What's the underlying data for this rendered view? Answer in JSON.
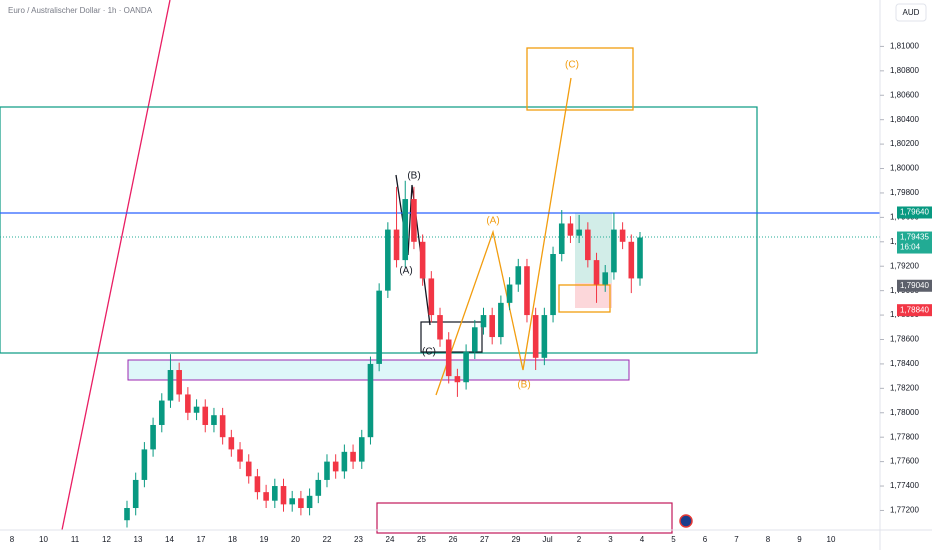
{
  "header": {
    "title": "Euro / Australischer Dollar · 1h · OANDA",
    "currency": "AUD"
  },
  "chart_data": {
    "type": "candlestick",
    "open": [
      1.7712,
      1.7722,
      1.7745,
      1.777,
      1.779,
      1.781,
      1.7835,
      1.7815,
      1.78,
      1.7805,
      1.779,
      1.7798,
      1.778,
      1.777,
      1.776,
      1.7748,
      1.7735,
      1.7728,
      1.774,
      1.7725,
      1.773,
      1.7722,
      1.7732,
      1.7745,
      1.776,
      1.7752,
      1.7768,
      1.776,
      1.778,
      1.784,
      1.79,
      1.795,
      1.7925,
      1.7975,
      1.794,
      1.791,
      1.788,
      1.786,
      1.783,
      1.7825,
      1.785,
      1.787,
      1.788,
      1.7862,
      1.789,
      1.7905,
      1.792,
      1.788,
      1.7845,
      1.788,
      1.793,
      1.7955,
      1.7945,
      1.795,
      1.7925,
      1.7905,
      1.7915,
      1.795,
      1.794,
      1.791
    ],
    "high": [
      1.7728,
      1.7751,
      1.7776,
      1.7796,
      1.7816,
      1.7848,
      1.7841,
      1.7821,
      1.7811,
      1.7811,
      1.7804,
      1.7804,
      1.7786,
      1.7776,
      1.7766,
      1.7754,
      1.7741,
      1.7746,
      1.7746,
      1.7736,
      1.7736,
      1.7738,
      1.7751,
      1.7766,
      1.7766,
      1.7774,
      1.7774,
      1.7786,
      1.7846,
      1.7906,
      1.7956,
      1.7985,
      1.799,
      1.7985,
      1.7946,
      1.7916,
      1.7886,
      1.7866,
      1.7836,
      1.7856,
      1.7876,
      1.7886,
      1.7886,
      1.7896,
      1.7911,
      1.7926,
      1.7926,
      1.7886,
      1.7886,
      1.7936,
      1.7966,
      1.7961,
      1.7962,
      1.7956,
      1.7931,
      1.7921,
      1.7964,
      1.7956,
      1.7946,
      1.7948
    ],
    "low": [
      1.7706,
      1.7716,
      1.7739,
      1.7764,
      1.7784,
      1.7804,
      1.7809,
      1.7794,
      1.7794,
      1.7784,
      1.7784,
      1.7774,
      1.7764,
      1.7754,
      1.7742,
      1.7729,
      1.7722,
      1.7722,
      1.7719,
      1.7719,
      1.7716,
      1.7716,
      1.7726,
      1.7739,
      1.7746,
      1.7746,
      1.7754,
      1.7754,
      1.7774,
      1.7834,
      1.7894,
      1.7919,
      1.7919,
      1.7934,
      1.7904,
      1.7874,
      1.7854,
      1.7824,
      1.7813,
      1.7819,
      1.7844,
      1.7864,
      1.7856,
      1.7856,
      1.7884,
      1.7899,
      1.7874,
      1.7835,
      1.7839,
      1.7874,
      1.7924,
      1.7939,
      1.7939,
      1.7919,
      1.789,
      1.7899,
      1.7909,
      1.7934,
      1.7898,
      1.7904
    ],
    "close": [
      1.7722,
      1.7745,
      1.777,
      1.779,
      1.781,
      1.7835,
      1.7815,
      1.78,
      1.7805,
      1.779,
      1.7798,
      1.778,
      1.777,
      1.776,
      1.7748,
      1.7735,
      1.7728,
      1.774,
      1.7725,
      1.773,
      1.7722,
      1.7732,
      1.7745,
      1.776,
      1.7752,
      1.7768,
      1.776,
      1.778,
      1.784,
      1.79,
      1.795,
      1.7925,
      1.7975,
      1.794,
      1.791,
      1.788,
      1.786,
      1.783,
      1.7825,
      1.785,
      1.787,
      1.788,
      1.7862,
      1.789,
      1.7905,
      1.792,
      1.788,
      1.7845,
      1.788,
      1.793,
      1.7955,
      1.7945,
      1.795,
      1.7925,
      1.7905,
      1.7915,
      1.795,
      1.794,
      1.791,
      1.79435
    ],
    "up_color": "#089981",
    "down_color": "#f23645",
    "ylim": [
      1.7704,
      1.8138
    ],
    "yticks": [
      {
        "value": 1.772,
        "label": "1,77200"
      },
      {
        "value": 1.774,
        "label": "1,77400"
      },
      {
        "value": 1.776,
        "label": "1,77600"
      },
      {
        "value": 1.778,
        "label": "1,77800"
      },
      {
        "value": 1.78,
        "label": "1,78000"
      },
      {
        "value": 1.782,
        "label": "1,78200"
      },
      {
        "value": 1.784,
        "label": "1,78400"
      },
      {
        "value": 1.786,
        "label": "1,78600"
      },
      {
        "value": 1.788,
        "label": "1,78800"
      },
      {
        "value": 1.79,
        "label": "1,79000"
      },
      {
        "value": 1.792,
        "label": "1,79200"
      },
      {
        "value": 1.794,
        "label": "1,79400"
      },
      {
        "value": 1.796,
        "label": "1,79600"
      },
      {
        "value": 1.798,
        "label": "1,79800"
      },
      {
        "value": 1.8,
        "label": "1,80000"
      },
      {
        "value": 1.802,
        "label": "1,80200"
      },
      {
        "value": 1.804,
        "label": "1,80400"
      },
      {
        "value": 1.806,
        "label": "1,80600"
      },
      {
        "value": 1.808,
        "label": "1,80800"
      },
      {
        "value": 1.81,
        "label": "1,81000"
      }
    ],
    "xtick_labels": [
      "8",
      "10",
      "11",
      "12",
      "13",
      "14",
      "17",
      "18",
      "19",
      "20",
      "22",
      "23",
      "24",
      "25",
      "26",
      "27",
      "29",
      "Jul",
      "2",
      "3",
      "4",
      "5",
      "6",
      "7",
      "8",
      "9",
      "10"
    ],
    "price_tags": [
      {
        "value": 1.7964,
        "label": "1,79640",
        "color": "#089981"
      },
      {
        "value": 1.79435,
        "label": "1,79435",
        "sub": "16:04",
        "color": "#22ab94"
      },
      {
        "value": 1.7904,
        "label": "1,79040",
        "color": "#5d606b"
      },
      {
        "value": 1.7884,
        "label": "1,78840",
        "color": "#f23645"
      }
    ],
    "annotations": [
      "(B)",
      "(A)",
      "(C)",
      "(A)",
      "(B)",
      "(C)"
    ]
  }
}
